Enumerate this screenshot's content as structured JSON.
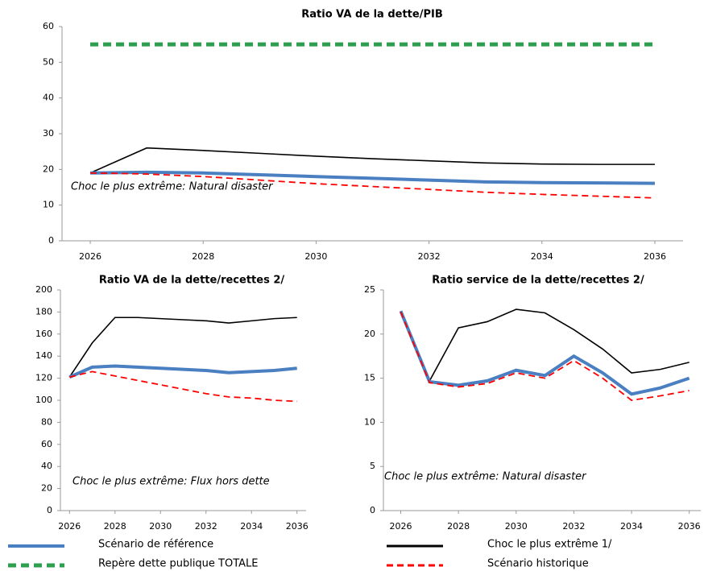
{
  "chart_data": [
    {
      "type": "line",
      "title": "Ratio VA de la dette/PIB",
      "annotation": "Choc le plus extrême: Natural disaster",
      "x": [
        2026,
        2027,
        2028,
        2029,
        2030,
        2031,
        2032,
        2033,
        2034,
        2035,
        2036
      ],
      "xlim": [
        2025.5,
        2036.5
      ],
      "xticks": [
        2026,
        2028,
        2030,
        2032,
        2034,
        2036
      ],
      "ylim": [
        0,
        60
      ],
      "yticks": [
        0,
        10,
        20,
        30,
        40,
        50,
        60
      ],
      "grid": false,
      "series": [
        {
          "name": "Choc le plus extrême 1/",
          "color": "#000000",
          "values": [
            19,
            26,
            25.3,
            24.5,
            23.7,
            23,
            22.4,
            21.8,
            21.5,
            21.4,
            21.4
          ]
        },
        {
          "name": "Scénario de référence",
          "color": "#4a7fc1",
          "values": [
            19,
            19.2,
            19,
            18.5,
            18,
            17.5,
            17,
            16.5,
            16.3,
            16.2,
            16.1
          ]
        },
        {
          "name": "Scénario historique",
          "color": "#ff0000",
          "values": [
            19,
            18.7,
            18,
            17,
            16,
            15.2,
            14.4,
            13.6,
            13,
            12.5,
            12
          ]
        },
        {
          "name": "Repère dette publique TOTALE",
          "color": "#2e9e4f",
          "values": [
            55,
            55,
            55,
            55,
            55,
            55,
            55,
            55,
            55,
            55,
            55
          ]
        }
      ]
    },
    {
      "type": "line",
      "title": "Ratio VA de la dette/recettes 2/",
      "annotation": "Choc le plus extrême: Flux hors dette",
      "x": [
        2026,
        2027,
        2028,
        2029,
        2030,
        2031,
        2032,
        2033,
        2034,
        2035,
        2036
      ],
      "xlim": [
        2025.6,
        2036.4
      ],
      "xticks": [
        2026,
        2028,
        2030,
        2032,
        2034,
        2036
      ],
      "ylim": [
        0,
        200
      ],
      "yticks": [
        0,
        20,
        40,
        60,
        80,
        100,
        120,
        140,
        160,
        180,
        200
      ],
      "grid": false,
      "series": [
        {
          "name": "Choc le plus extrême 1/",
          "color": "#000000",
          "values": [
            121,
            152,
            175,
            175,
            174,
            173,
            172,
            170,
            172,
            174,
            175
          ]
        },
        {
          "name": "Scénario de référence",
          "color": "#4a7fc1",
          "values": [
            121,
            130,
            131,
            130,
            129,
            128,
            127,
            125,
            126,
            127,
            129
          ]
        },
        {
          "name": "Scénario historique",
          "color": "#ff0000",
          "values": [
            121,
            126,
            122,
            118,
            114,
            110,
            106,
            103,
            102,
            100,
            99
          ]
        }
      ]
    },
    {
      "type": "line",
      "title": "Ratio service de la dette/recettes 2/",
      "annotation": "Choc le plus extrême: Natural disaster",
      "x": [
        2026,
        2027,
        2028,
        2029,
        2030,
        2031,
        2032,
        2033,
        2034,
        2035,
        2036
      ],
      "xlim": [
        2025.4,
        2036.4
      ],
      "xticks": [
        2026,
        2028,
        2030,
        2032,
        2034,
        2036
      ],
      "ylim": [
        0,
        25
      ],
      "yticks": [
        0,
        5,
        10,
        15,
        20,
        25
      ],
      "grid": false,
      "series": [
        {
          "name": "Choc le plus extrême 1/",
          "color": "#000000",
          "values": [
            22.6,
            14.7,
            20.7,
            21.4,
            22.8,
            22.4,
            20.5,
            18.3,
            15.6,
            16,
            16.8
          ]
        },
        {
          "name": "Scénario de référence",
          "color": "#4a7fc1",
          "values": [
            22.6,
            14.6,
            14.2,
            14.7,
            15.9,
            15.3,
            17.5,
            15.6,
            13.2,
            13.9,
            15
          ]
        },
        {
          "name": "Scénario historique",
          "color": "#ff0000",
          "values": [
            22.5,
            14.5,
            14.0,
            14.4,
            15.6,
            15.0,
            17.0,
            15.0,
            12.5,
            13.0,
            13.6
          ]
        }
      ]
    }
  ]
}
